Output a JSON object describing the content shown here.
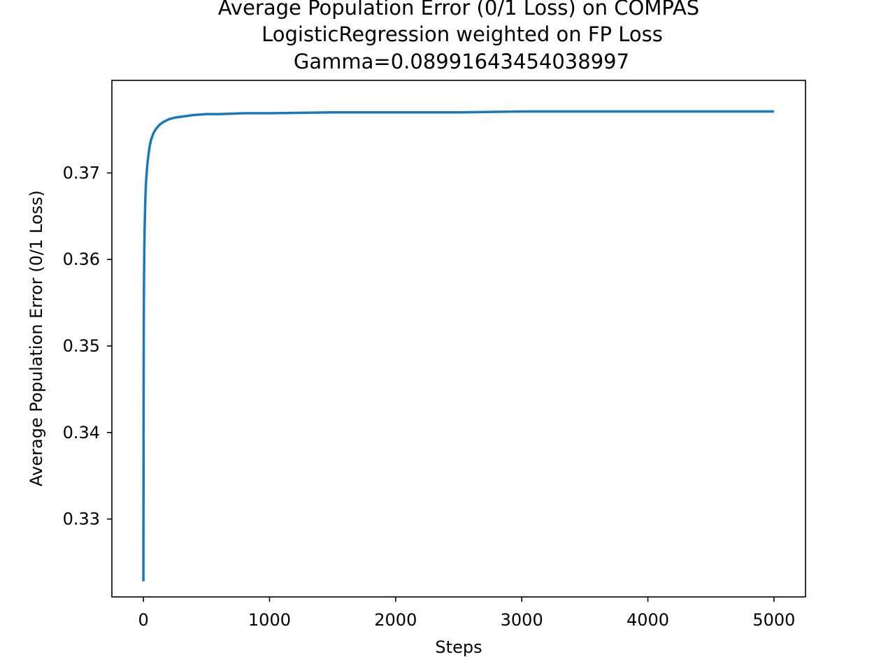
{
  "chart_data": {
    "type": "line",
    "title": "Average Population Error (0/1 Loss) on COMPAS",
    "subtitle": [
      "LogisticRegression weighted on FP Loss",
      "Gamma=0.08991643454038997"
    ],
    "xlabel": "Steps",
    "ylabel": "Average Population Error (0/1 Loss)",
    "xlim": [
      -250,
      5250
    ],
    "ylim": [
      0.321,
      0.3807
    ],
    "xticks": [
      0,
      1000,
      2000,
      3000,
      4000,
      5000
    ],
    "xtick_labels": [
      "0",
      "1000",
      "2000",
      "3000",
      "4000",
      "5000"
    ],
    "yticks": [
      0.33,
      0.34,
      0.35,
      0.36,
      0.37
    ],
    "ytick_labels": [
      "0.33",
      "0.34",
      "0.35",
      "0.36",
      "0.37"
    ],
    "grid": false,
    "legend": "none",
    "series_color": "#1f77b4",
    "series": [
      {
        "x": [
          0,
          1,
          2,
          3,
          5,
          8,
          10,
          15,
          20,
          30,
          40,
          50,
          60,
          80,
          100,
          130,
          160,
          200,
          250,
          300,
          400,
          500,
          600,
          800,
          1000,
          1500,
          2000,
          2500,
          3000,
          3500,
          4000,
          4500,
          5000
        ],
        "y": [
          0.3228,
          0.336,
          0.347,
          0.353,
          0.358,
          0.362,
          0.3638,
          0.3668,
          0.3688,
          0.3708,
          0.3721,
          0.3731,
          0.3738,
          0.3746,
          0.3751,
          0.3756,
          0.3759,
          0.3762,
          0.3764,
          0.3765,
          0.3767,
          0.3768,
          0.3768,
          0.3769,
          0.3769,
          0.377,
          0.377,
          0.377,
          0.3771,
          0.3771,
          0.3771,
          0.3771,
          0.3771
        ]
      }
    ]
  }
}
